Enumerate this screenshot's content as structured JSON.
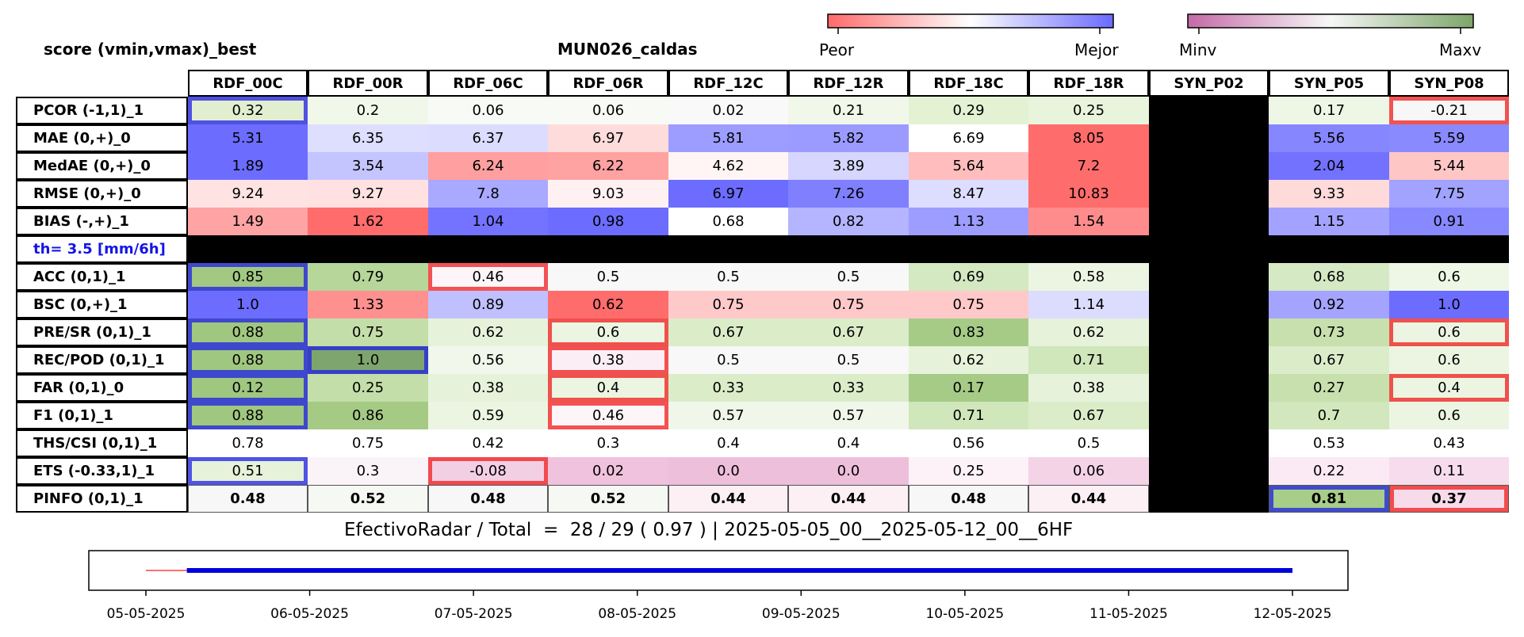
{
  "header": {
    "left_title": "score (vmin,vmax)_best",
    "center_title": "MUN026_caldas"
  },
  "colorbars": [
    {
      "name": "skill",
      "min_label": "Peor",
      "max_label": "Mejor",
      "colors": [
        "#ff6a6a",
        "#ffffff",
        "#6a6aff"
      ]
    },
    {
      "name": "value",
      "min_label": "Minv",
      "max_label": "Maxv",
      "colors": [
        "#c46aa6",
        "#f7f7f7",
        "#7da56a"
      ]
    }
  ],
  "columns": [
    "RDF_00C",
    "RDF_00R",
    "RDF_06C",
    "RDF_06R",
    "RDF_12C",
    "RDF_12R",
    "RDF_18C",
    "RDF_18R",
    "SYN_P02",
    "SYN_P05",
    "SYN_P08"
  ],
  "threshold_label": "th= 3.5 [mm/6h]",
  "colors": {
    "black": "#000000",
    "highlight_best": "#1e1ee6",
    "highlight_worst": "#f02828"
  },
  "chart_data": {
    "type": "heatmap",
    "rows": [
      {
        "label": "PCOR (-1,1)_1",
        "values": [
          "0.32",
          "0.2",
          "0.06",
          "0.06",
          "0.02",
          "0.21",
          "0.29",
          "0.25",
          null,
          "0.17",
          "-0.21"
        ],
        "colors": [
          "#e1efd0",
          "#f1f8ea",
          "#f7faf5",
          "#f7faf5",
          "#f8f9f8",
          "#f1f8ea",
          "#e4f2d4",
          "#e8f4dc",
          null,
          "#eef7e6",
          "#f7f7f7"
        ],
        "highlights": [
          "blue",
          null,
          null,
          null,
          null,
          null,
          null,
          null,
          null,
          null,
          "red"
        ]
      },
      {
        "label": "MAE (0,+)_0",
        "values": [
          "5.31",
          "6.35",
          "6.37",
          "6.97",
          "5.81",
          "5.82",
          "6.69",
          "8.05",
          null,
          "5.56",
          "5.59"
        ],
        "colors": [
          "#6c6cff",
          "#dedeff",
          "#dcdcff",
          "#ffdcdc",
          "#9d9dff",
          "#9b9bff",
          "#ffffff",
          "#ff6c6c",
          null,
          "#8686ff",
          "#8a8aff"
        ],
        "highlights": [
          null,
          null,
          null,
          null,
          null,
          null,
          null,
          null,
          null,
          null,
          null
        ]
      },
      {
        "label": "MedAE (0,+)_0",
        "values": [
          "1.89",
          "3.54",
          "6.24",
          "6.22",
          "4.62",
          "3.89",
          "5.64",
          "7.2",
          null,
          "2.04",
          "5.44"
        ],
        "colors": [
          "#6c6cff",
          "#c4c4ff",
          "#ff9f9f",
          "#ffa2a2",
          "#fff5f5",
          "#d6d6ff",
          "#ffbdbd",
          "#ff6c6c",
          null,
          "#7272ff",
          "#ffc6c6"
        ],
        "highlights": [
          null,
          null,
          null,
          null,
          null,
          null,
          null,
          null,
          null,
          null,
          null
        ]
      },
      {
        "label": "RMSE (0,+)_0",
        "values": [
          "9.24",
          "9.27",
          "7.8",
          "9.03",
          "6.97",
          "7.26",
          "8.47",
          "10.83",
          null,
          "9.33",
          "7.75"
        ],
        "colors": [
          "#ffe3e3",
          "#ffe1e1",
          "#a9a9ff",
          "#fff1f1",
          "#6c6cff",
          "#8080ff",
          "#ddddff",
          "#ff6c6c",
          null,
          "#ffdada",
          "#a2a2ff"
        ],
        "highlights": [
          null,
          null,
          null,
          null,
          null,
          null,
          null,
          null,
          null,
          null,
          null
        ]
      },
      {
        "label": "BIAS (-,+)_1",
        "values": [
          "1.49",
          "1.62",
          "1.04",
          "0.98",
          "0.68",
          "0.82",
          "1.13",
          "1.54",
          null,
          "1.15",
          "0.91"
        ],
        "colors": [
          "#ffa4a4",
          "#ff6c6c",
          "#7373ff",
          "#6c6cff",
          "#ffffff",
          "#b4b4ff",
          "#9d9dff",
          "#ff8c8c",
          null,
          "#a3a3ff",
          "#8888ff"
        ],
        "highlights": [
          null,
          null,
          null,
          null,
          null,
          null,
          null,
          null,
          null,
          null,
          null
        ]
      },
      {
        "label": "ACC (0,1)_1",
        "values": [
          "0.85",
          "0.79",
          "0.46",
          "0.5",
          "0.5",
          "0.5",
          "0.69",
          "0.58",
          null,
          "0.68",
          "0.6"
        ],
        "colors": [
          "#a2c882",
          "#b6d69a",
          "#fdf5f8",
          "#f8f8f8",
          "#f8f8f8",
          "#f8f8f8",
          "#d4e8c2",
          "#ecf5e2",
          null,
          "#d6e9c5",
          "#eef6e6"
        ],
        "highlights": [
          "blue",
          null,
          "red",
          null,
          null,
          null,
          null,
          null,
          null,
          null,
          null
        ]
      },
      {
        "label": "BSC (0,+)_1",
        "values": [
          "1.0",
          "1.33",
          "0.89",
          "0.62",
          "0.75",
          "0.75",
          "0.75",
          "1.14",
          null,
          "0.92",
          "1.0"
        ],
        "colors": [
          "#6c6cff",
          "#ff9090",
          "#c0c0ff",
          "#ff6c6c",
          "#ffc9c9",
          "#ffc9c9",
          "#ffc9c9",
          "#dcdcff",
          null,
          "#a4a4ff",
          "#6c6cff"
        ],
        "highlights": [
          null,
          null,
          null,
          null,
          null,
          null,
          null,
          null,
          null,
          null,
          null
        ]
      },
      {
        "label": "PRE/SR (0,1)_1",
        "values": [
          "0.88",
          "0.75",
          "0.62",
          "0.6",
          "0.67",
          "0.67",
          "0.83",
          "0.62",
          null,
          "0.73",
          "0.6"
        ],
        "colors": [
          "#a0c77f",
          "#c4dea9",
          "#e6f2da",
          "#ecf5e2",
          "#dbecc9",
          "#dbecc9",
          "#a6cb86",
          "#e6f2da",
          null,
          "#c8e0ae",
          "#ecf5e2"
        ],
        "highlights": [
          "blue",
          null,
          null,
          "red",
          null,
          null,
          null,
          null,
          null,
          null,
          "red"
        ]
      },
      {
        "label": "REC/POD (0,1)_1",
        "values": [
          "0.88",
          "1.0",
          "0.56",
          "0.38",
          "0.5",
          "0.5",
          "0.62",
          "0.71",
          null,
          "0.67",
          "0.6"
        ],
        "colors": [
          "#a0c77f",
          "#7fa56e",
          "#f1f7eb",
          "#fbeff5",
          "#f8f8f8",
          "#f8f8f8",
          "#e6f2da",
          "#d0e6bb",
          null,
          "#dbecc9",
          "#ecf5e2"
        ],
        "highlights": [
          "blue",
          "blue",
          null,
          "red",
          null,
          null,
          null,
          null,
          null,
          null,
          null
        ]
      },
      {
        "label": "FAR (0,1)_0",
        "values": [
          "0.12",
          "0.25",
          "0.38",
          "0.4",
          "0.33",
          "0.33",
          "0.17",
          "0.38",
          null,
          "0.27",
          "0.4"
        ],
        "colors": [
          "#a0c77f",
          "#c4dea9",
          "#e6f2da",
          "#ecf5e2",
          "#dbecc9",
          "#dbecc9",
          "#a6cb86",
          "#e6f2da",
          null,
          "#c8e0ae",
          "#ecf5e2"
        ],
        "highlights": [
          "blue",
          null,
          null,
          "red",
          null,
          null,
          null,
          null,
          null,
          null,
          "red"
        ]
      },
      {
        "label": "F1 (0,1)_1",
        "values": [
          "0.88",
          "0.86",
          "0.59",
          "0.46",
          "0.57",
          "0.57",
          "0.71",
          "0.67",
          null,
          "0.7",
          "0.6"
        ],
        "colors": [
          "#a0c77f",
          "#a5ca84",
          "#ecf5e2",
          "#fdf5f8",
          "#f0f7ea",
          "#f0f7ea",
          "#d0e6bb",
          "#dbecc9",
          null,
          "#d2e7bd",
          "#ecf5e2"
        ],
        "highlights": [
          "blue",
          null,
          null,
          "red",
          null,
          null,
          null,
          null,
          null,
          null,
          null
        ]
      },
      {
        "label": "THS/CSI (0,1)_1",
        "values": [
          "0.78",
          "0.75",
          "0.42",
          "0.3",
          "0.4",
          "0.4",
          "0.56",
          "0.5",
          null,
          "0.53",
          "0.43"
        ],
        "colors": [
          "#ffffff",
          "#ffffff",
          "#ffffff",
          "#ffffff",
          "#ffffff",
          "#ffffff",
          "#ffffff",
          "#ffffff",
          null,
          "#ffffff",
          "#ffffff"
        ],
        "highlights": [
          null,
          null,
          null,
          null,
          null,
          null,
          null,
          null,
          null,
          null,
          null
        ]
      },
      {
        "label": "ETS (-0.33,1)_1",
        "values": [
          "0.51",
          "0.3",
          "-0.08",
          "0.02",
          "0.0",
          "0.0",
          "0.25",
          "0.06",
          null,
          "0.22",
          "0.11"
        ],
        "colors": [
          "#e6f2da",
          "#faf4f8",
          "#f3cfe4",
          "#f1c2dd",
          "#eebfda",
          "#eebfda",
          "#fcf2f7",
          "#f4d3e7",
          null,
          "#fbeaf3",
          "#f6dcec"
        ],
        "highlights": [
          "blue",
          null,
          "red",
          null,
          null,
          null,
          null,
          null,
          null,
          null,
          null
        ]
      },
      {
        "label": "PINFO (0,1)_1",
        "values": [
          "0.48",
          "0.52",
          "0.48",
          "0.52",
          "0.44",
          "0.44",
          "0.48",
          "0.44",
          null,
          "0.81",
          "0.37"
        ],
        "colors": [
          "#f7f7f7",
          "#f6f9f3",
          "#f7f7f7",
          "#f6f9f3",
          "#fcf0f5",
          "#fcf0f5",
          "#f7f7f7",
          "#fcf0f5",
          null,
          "#a8cd88",
          "#f7dbeb"
        ],
        "highlights": [
          null,
          null,
          null,
          null,
          null,
          null,
          null,
          null,
          null,
          "blue",
          "red"
        ],
        "bold": true
      }
    ]
  },
  "summary": "EfectivoRadar / Total  =  28 / 29 ( 0.97 ) | 2025-05-05_00__2025-05-12_00__6HF",
  "timeline": {
    "ticks": [
      "05-05-2025",
      "06-05-2025",
      "07-05-2025",
      "08-05-2025",
      "09-05-2025",
      "10-05-2025",
      "11-05-2025",
      "12-05-2025"
    ],
    "missing_segment": [
      0.0,
      0.25
    ],
    "available_segment": [
      0.25,
      7.0
    ],
    "missing_color": "#ff4040",
    "available_color": "#0000dd"
  }
}
